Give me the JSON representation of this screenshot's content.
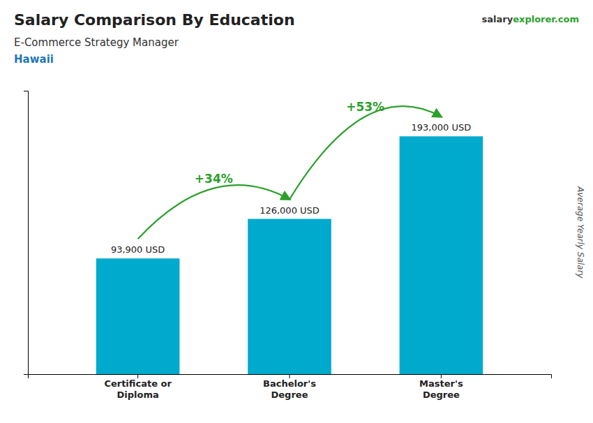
{
  "chart_data": {
    "type": "bar",
    "title": "Salary Comparison By Education",
    "subtitle": [
      "E-Commerce Strategy Manager",
      "Hawaii"
    ],
    "source": [
      "salary",
      "explorer.com"
    ],
    "ylabel": "Average Yearly Salary",
    "categories": [
      "Certificate or\nDiploma",
      "Bachelor's\nDegree",
      "Master's\nDegree"
    ],
    "values": [
      93900,
      126000,
      193000
    ],
    "value_labels": [
      "93,900 USD",
      "126,000 USD",
      "193,000 USD"
    ],
    "data_labels": true,
    "annotations": [
      "+34%",
      "+53%"
    ],
    "color": "#00aacc",
    "ylim": [
      0,
      230000
    ],
    "tick_labels": "x",
    "grid": false
  }
}
